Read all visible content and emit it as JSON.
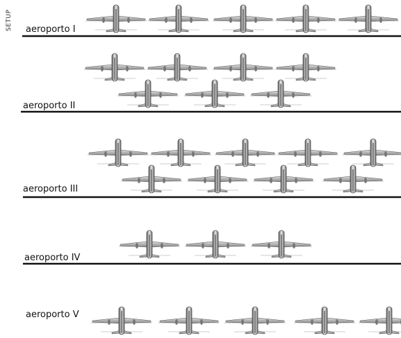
{
  "sidebar": {
    "label": "SETUP"
  },
  "airports": [
    {
      "label": "aeroporto I"
    },
    {
      "label": "aeroporto II"
    },
    {
      "label": "aeroporto III"
    },
    {
      "label": "aeroporto IV"
    },
    {
      "label": "aeroporto V"
    }
  ]
}
